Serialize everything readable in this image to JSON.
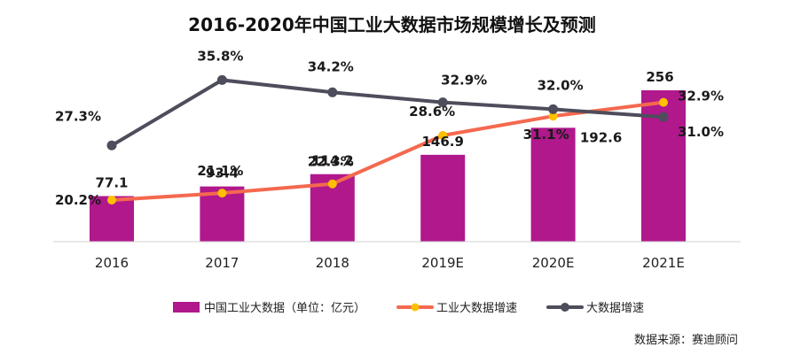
{
  "chart_data": {
    "type": "bar+line",
    "title": "2016-2020年中国工业大数据市场规模增长及预测",
    "categories": [
      "2016",
      "2017",
      "2018",
      "2019E",
      "2020E",
      "2021E"
    ],
    "series": [
      {
        "name": "中国工业大数据（单位：亿元）",
        "kind": "bar",
        "color": "#B0188C",
        "values": [
          77.1,
          93.4,
          114.2,
          146.9,
          192.6,
          256
        ],
        "labels": [
          "77.1",
          "93.4",
          "114.2",
          "146.9",
          "192.6",
          "256"
        ]
      },
      {
        "name": "工业大数据增速",
        "kind": "line",
        "color": "#F4694F",
        "marker_color": "#FFC000",
        "values": [
          20.2,
          21.1,
          22.3,
          28.6,
          31.1,
          32.9
        ],
        "labels": [
          "20.2%",
          "21.1%",
          "22.3%",
          "28.6%",
          "31.1%",
          "32.9%"
        ]
      },
      {
        "name": "大数据增速",
        "kind": "line",
        "color": "#4D4D5C",
        "marker_color": "#4D4D5C",
        "values": [
          27.3,
          35.8,
          34.2,
          32.9,
          32.0,
          31.0
        ],
        "labels": [
          "27.3%",
          "35.8%",
          "34.2%",
          "32.9%",
          "32.0%",
          "31.0%"
        ]
      }
    ],
    "legend_position": "bottom",
    "source": "数据来源：赛迪顾问"
  }
}
